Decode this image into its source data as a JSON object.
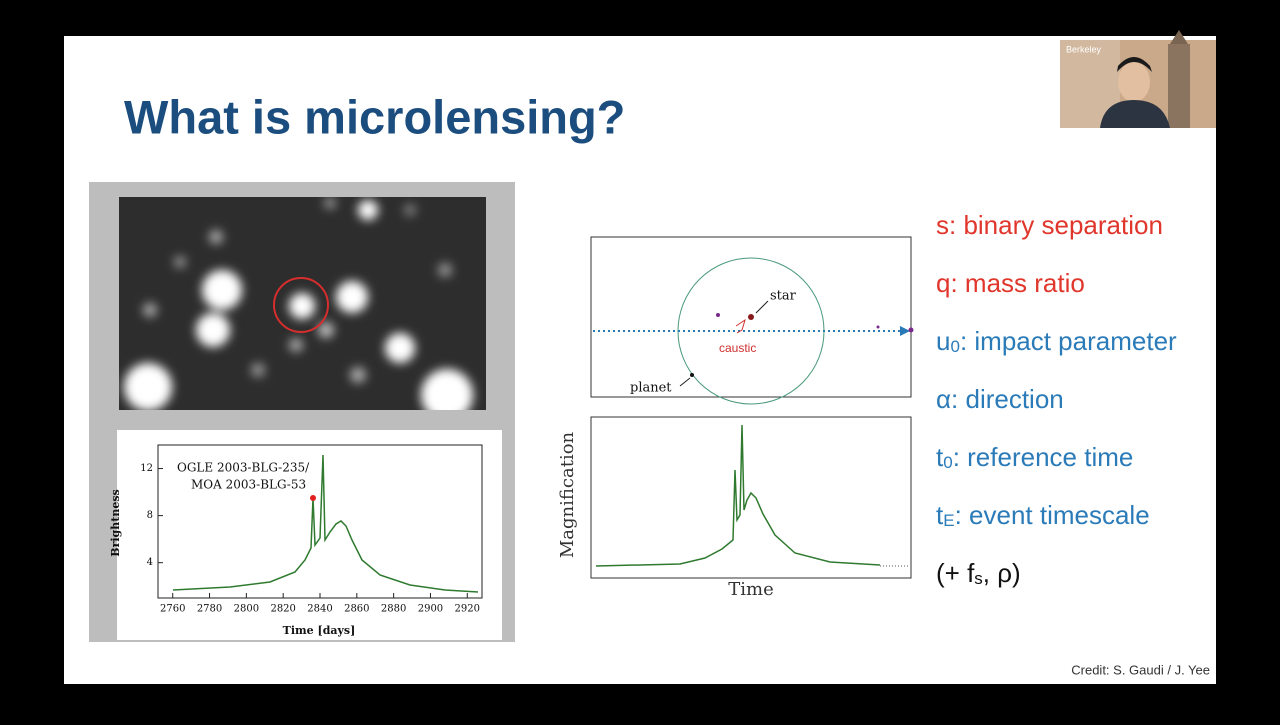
{
  "slide": {
    "title": "What is microlensing?",
    "webcam_label": "Berkeley",
    "left_figure": {
      "lightcurve": {
        "legend": [
          "OGLE 2003-BLG-235/",
          "MOA 2003-BLG-53"
        ],
        "ylabel": "Brightness",
        "xlabel": "Time [days]",
        "xlim": [
          2752,
          2928
        ],
        "xticks": [
          2760,
          2780,
          2800,
          2820,
          2840,
          2860,
          2880,
          2900,
          2920
        ],
        "ylim": [
          1,
          14
        ],
        "yticks": [
          4,
          8,
          12
        ]
      }
    },
    "right_figure": {
      "labels": {
        "star": "star",
        "caustic": "caustic",
        "planet": "planet"
      },
      "ylabel": "Magnification",
      "xlabel": "Time"
    },
    "parameters": [
      {
        "symbol": "s",
        "rest": ": binary separation",
        "color": "#e0362c"
      },
      {
        "symbol": "q",
        "rest": ": mass ratio",
        "color": "#e0362c"
      },
      {
        "symbol": "u",
        "sub": "0",
        "rest": ": impact parameter",
        "color": "#2b7bb9"
      },
      {
        "symbol": "α",
        "rest": ": direction",
        "color": "#2b7bb9"
      },
      {
        "symbol": "t",
        "sub": "0",
        "rest": ": reference time",
        "color": "#2b7bb9"
      },
      {
        "symbol": "t",
        "sub": "E",
        "rest": ": event timescale",
        "color": "#2b7bb9"
      },
      {
        "symbol": "(+ f",
        "sub": "s",
        "rest": ", ρ)",
        "color": "#111111"
      }
    ],
    "credit": "Credit: S. Gaudi / J. Yee"
  }
}
